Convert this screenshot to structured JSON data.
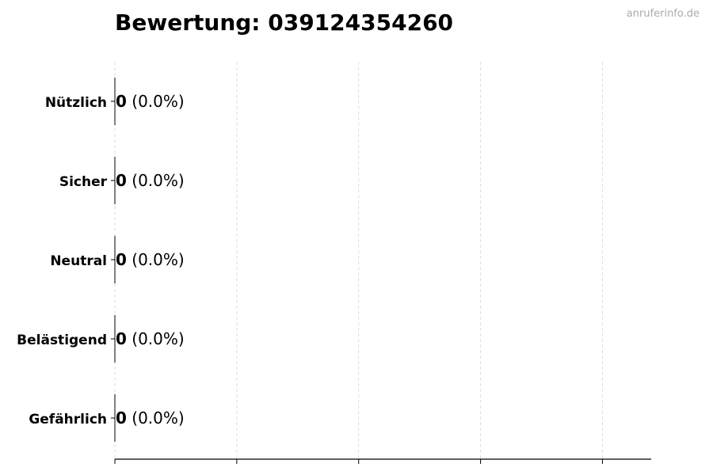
{
  "chart_data": {
    "type": "bar",
    "orientation": "horizontal",
    "title": "Bewertung: 039124354260",
    "watermark": "anruferinfo.de",
    "categories": [
      "Nützlich",
      "Sicher",
      "Neutral",
      "Belästigend",
      "Gefährlich"
    ],
    "values": [
      0,
      0,
      0,
      0,
      0
    ],
    "data_labels": [
      {
        "count": "0",
        "percent": "(0.0%)"
      },
      {
        "count": "0",
        "percent": "(0.0%)"
      },
      {
        "count": "0",
        "percent": "(0.0%)"
      },
      {
        "count": "0",
        "percent": "(0.0%)"
      },
      {
        "count": "0",
        "percent": "(0.0%)"
      }
    ],
    "xlabel": "",
    "ylabel": "",
    "xlim": [
      0,
      4.4
    ],
    "xticks": [
      0,
      1,
      2,
      3,
      4
    ],
    "grid": "vertical dashed",
    "colors": {
      "grid": "#dddddd",
      "axis": "#000000",
      "watermark": "#aaaaaa"
    }
  }
}
